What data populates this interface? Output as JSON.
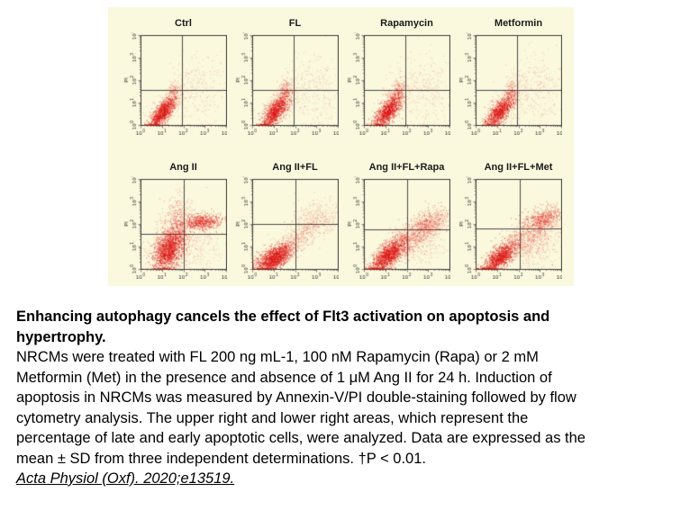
{
  "figure": {
    "bg": "#faf8dd",
    "dot_color": "#dc1010",
    "frame_color": "#3c3c3c",
    "gate_color": "#4a4a4a",
    "tick_color": "#333333",
    "title_color": "#1b1b1b",
    "ylabel": "PI",
    "tick_base": "10",
    "tick_exps": [
      "0",
      "1",
      "2",
      "3",
      "4"
    ]
  },
  "chart_data": {
    "type": "scatter",
    "subtype": "flow-cytometry-quadrant",
    "x_axis": {
      "label": "",
      "scale": "log",
      "range": [
        1,
        10000
      ]
    },
    "y_axis": {
      "label": "PI",
      "scale": "log",
      "range": [
        1,
        10000
      ]
    },
    "grid": false,
    "legend": "none",
    "note": "clusters = [n, center_x_log10, center_y_log10, sd_x, sd_y, xy_correlation, alpha]",
    "rows": [
      {
        "panels": [
          {
            "title": "Ctrl",
            "gate_x": 1.95,
            "gate_y": 1.58,
            "clusters": [
              [
                850,
                1.0,
                0.55,
                0.28,
                0.32,
                0.7,
                0.5
              ],
              [
                420,
                1.12,
                0.75,
                0.42,
                0.5,
                0.72,
                0.22
              ],
              [
                130,
                1.5,
                1.4,
                0.14,
                0.28,
                0.2,
                0.3
              ],
              [
                260,
                2.7,
                1.55,
                0.75,
                0.8,
                0.0,
                0.18
              ]
            ]
          },
          {
            "title": "FL",
            "gate_x": 1.95,
            "gate_y": 1.58,
            "clusters": [
              [
                870,
                1.05,
                0.6,
                0.3,
                0.34,
                0.7,
                0.5
              ],
              [
                430,
                1.18,
                0.85,
                0.44,
                0.52,
                0.72,
                0.22
              ],
              [
                150,
                1.52,
                1.45,
                0.15,
                0.3,
                0.2,
                0.3
              ],
              [
                280,
                2.7,
                1.6,
                0.75,
                0.8,
                0.0,
                0.18
              ]
            ]
          },
          {
            "title": "Rapamycin",
            "gate_x": 1.95,
            "gate_y": 1.58,
            "clusters": [
              [
                880,
                1.1,
                0.62,
                0.32,
                0.36,
                0.72,
                0.5
              ],
              [
                440,
                1.25,
                0.9,
                0.45,
                0.55,
                0.72,
                0.22
              ],
              [
                150,
                1.55,
                1.45,
                0.15,
                0.3,
                0.2,
                0.3
              ],
              [
                300,
                2.8,
                1.6,
                0.72,
                0.8,
                0.0,
                0.18
              ]
            ]
          },
          {
            "title": "Metformin",
            "gate_x": 1.95,
            "gate_y": 1.58,
            "clusters": [
              [
                830,
                1.12,
                0.6,
                0.3,
                0.34,
                0.7,
                0.5
              ],
              [
                400,
                1.28,
                0.85,
                0.42,
                0.5,
                0.7,
                0.22
              ],
              [
                120,
                1.6,
                1.4,
                0.15,
                0.28,
                0.2,
                0.3
              ],
              [
                300,
                2.8,
                1.6,
                0.72,
                0.8,
                0.0,
                0.18
              ]
            ]
          }
        ]
      },
      {
        "panels": [
          {
            "title": "Ang II",
            "gate_x": 2.0,
            "gate_y": 1.55,
            "clusters": [
              [
                1300,
                1.3,
                0.85,
                0.35,
                0.45,
                0.45,
                0.5
              ],
              [
                600,
                1.45,
                1.3,
                0.5,
                0.68,
                0.4,
                0.28
              ],
              [
                260,
                1.7,
                2.3,
                0.28,
                0.5,
                0.1,
                0.28
              ],
              [
                560,
                2.85,
                2.1,
                0.45,
                0.18,
                0.1,
                0.45
              ],
              [
                200,
                2.7,
                0.9,
                0.6,
                0.5,
                0.2,
                0.18
              ]
            ]
          },
          {
            "title": "Ang II+FL",
            "gate_x": 2.0,
            "gate_y": 2.0,
            "clusters": [
              [
                1250,
                1.0,
                0.48,
                0.4,
                0.3,
                0.6,
                0.5
              ],
              [
                480,
                1.3,
                0.8,
                0.55,
                0.45,
                0.7,
                0.22
              ],
              [
                280,
                2.3,
                1.4,
                0.55,
                0.45,
                0.7,
                0.22
              ],
              [
                320,
                3.0,
                2.3,
                0.55,
                0.4,
                0.2,
                0.22
              ]
            ]
          },
          {
            "title": "Ang II+FL+Rapa",
            "gate_x": 2.0,
            "gate_y": 1.75,
            "clusters": [
              [
                1150,
                1.1,
                0.6,
                0.4,
                0.4,
                0.7,
                0.5
              ],
              [
                520,
                1.5,
                1.0,
                0.55,
                0.5,
                0.72,
                0.28
              ],
              [
                480,
                2.5,
                1.5,
                0.55,
                0.5,
                0.7,
                0.28
              ],
              [
                430,
                3.1,
                2.1,
                0.5,
                0.3,
                0.3,
                0.32
              ],
              [
                150,
                2.8,
                0.9,
                0.6,
                0.4,
                0.2,
                0.18
              ]
            ]
          },
          {
            "title": "Ang II+FL+Met",
            "gate_x": 2.05,
            "gate_y": 1.8,
            "clusters": [
              [
                1000,
                1.1,
                0.5,
                0.38,
                0.35,
                0.7,
                0.5
              ],
              [
                420,
                1.5,
                0.95,
                0.5,
                0.5,
                0.7,
                0.28
              ],
              [
                350,
                2.5,
                1.35,
                0.55,
                0.45,
                0.6,
                0.25
              ],
              [
                550,
                3.1,
                2.2,
                0.5,
                0.3,
                0.4,
                0.4
              ],
              [
                250,
                2.9,
                0.9,
                0.6,
                0.45,
                0.2,
                0.2
              ]
            ]
          }
        ]
      }
    ]
  },
  "caption": {
    "lines": [
      {
        "text": "Enhancing autophagy cancels the effect of Flt3 activation on apoptosis and",
        "style": "bold"
      },
      {
        "text": "hypertrophy.",
        "style": "bold"
      },
      {
        "text": "NRCMs were treated with FL 200 ng mL-1, 100 nM Rapamycin (Rapa) or 2 mM",
        "style": "normal"
      },
      {
        "text": "Metformin (Met) in the presence and absence of 1 μM Ang II for 24 h. Induction of",
        "style": "normal"
      },
      {
        "text": "apoptosis in NRCMs was measured by Annexin-V/PI double-staining followed by flow",
        "style": "normal"
      },
      {
        "text": "cytometry analysis. The upper right and lower right areas, which represent the",
        "style": "normal"
      },
      {
        "text": "percentage of late and early apoptotic cells, were analyzed. Data are expressed as the",
        "style": "normal"
      },
      {
        "text": "mean ± SD from three independent determinations. †P < 0.01.",
        "style": "normal"
      },
      {
        "text": "Acta Physiol (Oxf). 2020;e13519.",
        "style": "citation"
      }
    ]
  }
}
